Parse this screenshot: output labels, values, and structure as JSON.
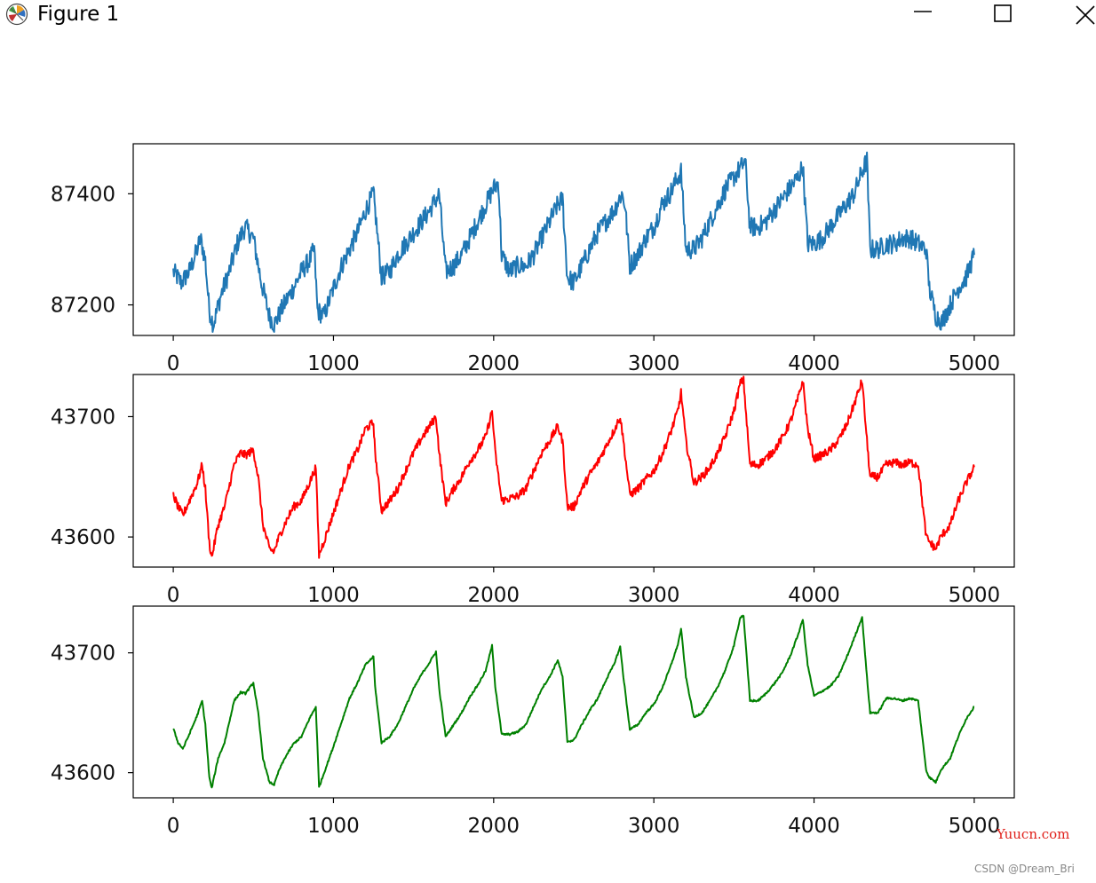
{
  "window": {
    "title": "Figure 1",
    "icon": "matplotlib-icon",
    "controls": [
      "minimize-icon",
      "maximize-icon",
      "close-icon"
    ]
  },
  "watermarks": {
    "site": "Yuucn.com",
    "author": "CSDN @Dream_Bri"
  },
  "chart_data": [
    {
      "type": "line",
      "color": "#1f77b4",
      "xlim": [
        -250,
        5250
      ],
      "ylim": [
        87145,
        87490
      ],
      "xticks": [
        0,
        1000,
        2000,
        3000,
        4000,
        5000
      ],
      "yticks": [
        87200,
        87400
      ],
      "xticklabels": [
        "0",
        "1000",
        "2000",
        "3000",
        "4000",
        "5000"
      ],
      "yticklabels": [
        "87200",
        "87400"
      ],
      "noise": 18,
      "x": [
        0,
        50,
        100,
        150,
        170,
        200,
        225,
        250,
        300,
        350,
        400,
        430,
        450,
        500,
        550,
        600,
        630,
        700,
        750,
        800,
        850,
        880,
        900,
        940,
        1000,
        1050,
        1100,
        1150,
        1200,
        1250,
        1260,
        1300,
        1350,
        1400,
        1450,
        1500,
        1550,
        1600,
        1640,
        1660,
        1700,
        1750,
        1800,
        1850,
        1900,
        1950,
        2000,
        2030,
        2050,
        2100,
        2150,
        2200,
        2250,
        2300,
        2350,
        2400,
        2430,
        2460,
        2500,
        2550,
        2600,
        2650,
        2700,
        2750,
        2800,
        2820,
        2850,
        2900,
        2950,
        3000,
        3050,
        3100,
        3150,
        3170,
        3200,
        3250,
        3300,
        3350,
        3400,
        3450,
        3500,
        3550,
        3570,
        3600,
        3650,
        3700,
        3750,
        3800,
        3850,
        3900,
        3930,
        3960,
        4000,
        4050,
        4100,
        4150,
        4200,
        4250,
        4300,
        4330,
        4350,
        4400,
        4450,
        4500,
        4550,
        4600,
        4650,
        4700,
        4720,
        4760,
        4800,
        4850,
        4900,
        4950,
        5000
      ],
      "y": [
        87260,
        87240,
        87260,
        87300,
        87320,
        87280,
        87190,
        87165,
        87220,
        87260,
        87310,
        87330,
        87340,
        87320,
        87240,
        87180,
        87165,
        87205,
        87230,
        87260,
        87280,
        87300,
        87190,
        87180,
        87230,
        87270,
        87300,
        87330,
        87370,
        87400,
        87370,
        87250,
        87260,
        87290,
        87310,
        87330,
        87350,
        87370,
        87390,
        87400,
        87260,
        87270,
        87290,
        87320,
        87350,
        87380,
        87410,
        87420,
        87290,
        87260,
        87270,
        87270,
        87290,
        87320,
        87350,
        87380,
        87390,
        87250,
        87240,
        87270,
        87300,
        87330,
        87350,
        87370,
        87400,
        87380,
        87270,
        87290,
        87320,
        87340,
        87380,
        87400,
        87430,
        87440,
        87300,
        87300,
        87320,
        87350,
        87380,
        87410,
        87430,
        87450,
        87460,
        87340,
        87340,
        87350,
        87370,
        87390,
        87410,
        87430,
        87450,
        87310,
        87310,
        87320,
        87340,
        87360,
        87380,
        87400,
        87440,
        87460,
        87300,
        87300,
        87310,
        87310,
        87320,
        87320,
        87310,
        87300,
        87230,
        87180,
        87170,
        87200,
        87230,
        87250,
        87290
      ]
    },
    {
      "type": "line",
      "color": "#ff0000",
      "xlim": [
        -250,
        5250
      ],
      "ylim": [
        43575,
        43735
      ],
      "xticks": [
        0,
        1000,
        2000,
        3000,
        4000,
        5000
      ],
      "yticks": [
        43600,
        43700
      ],
      "xticklabels": [
        "0",
        "1000",
        "2000",
        "3000",
        "4000",
        "5000"
      ],
      "yticklabels": [
        "43600",
        "43700"
      ],
      "noise": 3.5,
      "x": [
        0,
        30,
        60,
        100,
        150,
        180,
        200,
        225,
        240,
        280,
        320,
        380,
        420,
        450,
        500,
        530,
        560,
        600,
        630,
        660,
        700,
        750,
        800,
        850,
        890,
        910,
        950,
        1000,
        1050,
        1100,
        1150,
        1200,
        1250,
        1260,
        1300,
        1350,
        1400,
        1450,
        1500,
        1550,
        1600,
        1640,
        1660,
        1700,
        1750,
        1800,
        1850,
        1900,
        1950,
        1990,
        2010,
        2050,
        2100,
        2150,
        2200,
        2250,
        2300,
        2350,
        2400,
        2430,
        2460,
        2500,
        2550,
        2600,
        2650,
        2700,
        2750,
        2790,
        2810,
        2850,
        2900,
        2950,
        3000,
        3050,
        3100,
        3150,
        3170,
        3200,
        3250,
        3300,
        3350,
        3400,
        3450,
        3500,
        3540,
        3560,
        3600,
        3650,
        3700,
        3750,
        3800,
        3850,
        3900,
        3930,
        3960,
        4000,
        4050,
        4100,
        4150,
        4200,
        4250,
        4300,
        4330,
        4350,
        4400,
        4450,
        4500,
        4550,
        4600,
        4650,
        4700,
        4720,
        4760,
        4790,
        4850,
        4900,
        4950,
        5000
      ],
      "y": [
        43635,
        43625,
        43618,
        43630,
        43645,
        43660,
        43640,
        43595,
        43583,
        43610,
        43625,
        43660,
        43670,
        43668,
        43672,
        43650,
        43610,
        43590,
        43588,
        43600,
        43612,
        43625,
        43630,
        43645,
        43658,
        43585,
        43600,
        43620,
        43640,
        43660,
        43672,
        43690,
        43695,
        43670,
        43622,
        43630,
        43640,
        43655,
        43670,
        43682,
        43692,
        43700,
        43670,
        43628,
        43640,
        43650,
        43663,
        43672,
        43683,
        43705,
        43670,
        43630,
        43632,
        43634,
        43640,
        43655,
        43670,
        43680,
        43692,
        43680,
        43625,
        43625,
        43640,
        43652,
        43662,
        43675,
        43688,
        43700,
        43680,
        43635,
        43640,
        43648,
        43655,
        43668,
        43685,
        43705,
        43720,
        43680,
        43645,
        43650,
        43658,
        43670,
        43685,
        43705,
        43728,
        43730,
        43660,
        43660,
        43665,
        43672,
        43682,
        43695,
        43715,
        43730,
        43690,
        43665,
        43668,
        43672,
        43680,
        43692,
        43710,
        43730,
        43680,
        43650,
        43650,
        43660,
        43662,
        43660,
        43662,
        43660,
        43600,
        43596,
        43590,
        43600,
        43610,
        43630,
        43645,
        43658
      ]
    },
    {
      "type": "line",
      "color": "#008000",
      "xlim": [
        -250,
        5250
      ],
      "ylim": [
        43579,
        43739
      ],
      "xticks": [
        0,
        1000,
        2000,
        3000,
        4000,
        5000
      ],
      "yticks": [
        43600,
        43700
      ],
      "xticklabels": [
        "0",
        "1000",
        "2000",
        "3000",
        "4000",
        "5000"
      ],
      "yticklabels": [
        "43600",
        "43700"
      ],
      "noise": 0.8,
      "x": [
        0,
        30,
        60,
        100,
        150,
        180,
        200,
        225,
        240,
        280,
        320,
        380,
        420,
        450,
        500,
        530,
        560,
        600,
        630,
        660,
        700,
        750,
        800,
        850,
        890,
        910,
        950,
        1000,
        1050,
        1100,
        1150,
        1200,
        1250,
        1260,
        1300,
        1350,
        1400,
        1450,
        1500,
        1550,
        1600,
        1640,
        1660,
        1700,
        1750,
        1800,
        1850,
        1900,
        1950,
        1990,
        2010,
        2050,
        2100,
        2150,
        2200,
        2250,
        2300,
        2350,
        2400,
        2430,
        2460,
        2500,
        2550,
        2600,
        2650,
        2700,
        2750,
        2790,
        2810,
        2850,
        2900,
        2950,
        3000,
        3050,
        3100,
        3150,
        3170,
        3200,
        3250,
        3300,
        3350,
        3400,
        3450,
        3500,
        3540,
        3560,
        3600,
        3650,
        3700,
        3750,
        3800,
        3850,
        3900,
        3930,
        3960,
        4000,
        4050,
        4100,
        4150,
        4200,
        4250,
        4300,
        4330,
        4350,
        4400,
        4450,
        4500,
        4550,
        4600,
        4650,
        4700,
        4720,
        4760,
        4790,
        4850,
        4900,
        4950,
        5000
      ],
      "y": [
        43637,
        43625,
        43620,
        43632,
        43648,
        43660,
        43640,
        43596,
        43587,
        43612,
        43625,
        43660,
        43667,
        43666,
        43675,
        43650,
        43612,
        43592,
        43590,
        43602,
        43613,
        43624,
        43630,
        43645,
        43655,
        43588,
        43603,
        43622,
        43642,
        43662,
        43675,
        43690,
        43697,
        43672,
        43625,
        43630,
        43640,
        43655,
        43670,
        43682,
        43692,
        43701,
        43670,
        43630,
        43640,
        43650,
        43663,
        43673,
        43685,
        43706,
        43672,
        43632,
        43632,
        43634,
        43640,
        43655,
        43670,
        43680,
        43694,
        43680,
        43626,
        43627,
        43640,
        43652,
        43662,
        43677,
        43690,
        43705,
        43680,
        43636,
        43640,
        43650,
        43657,
        43670,
        43687,
        43707,
        43720,
        43680,
        43646,
        43650,
        43660,
        43672,
        43687,
        43706,
        43730,
        43731,
        43660,
        43660,
        43666,
        43674,
        43683,
        43697,
        43715,
        43728,
        43690,
        43664,
        43668,
        43672,
        43680,
        43695,
        43712,
        43730,
        43680,
        43650,
        43650,
        43662,
        43662,
        43660,
        43662,
        43660,
        43602,
        43596,
        43592,
        43602,
        43612,
        43630,
        43645,
        43655
      ]
    }
  ]
}
